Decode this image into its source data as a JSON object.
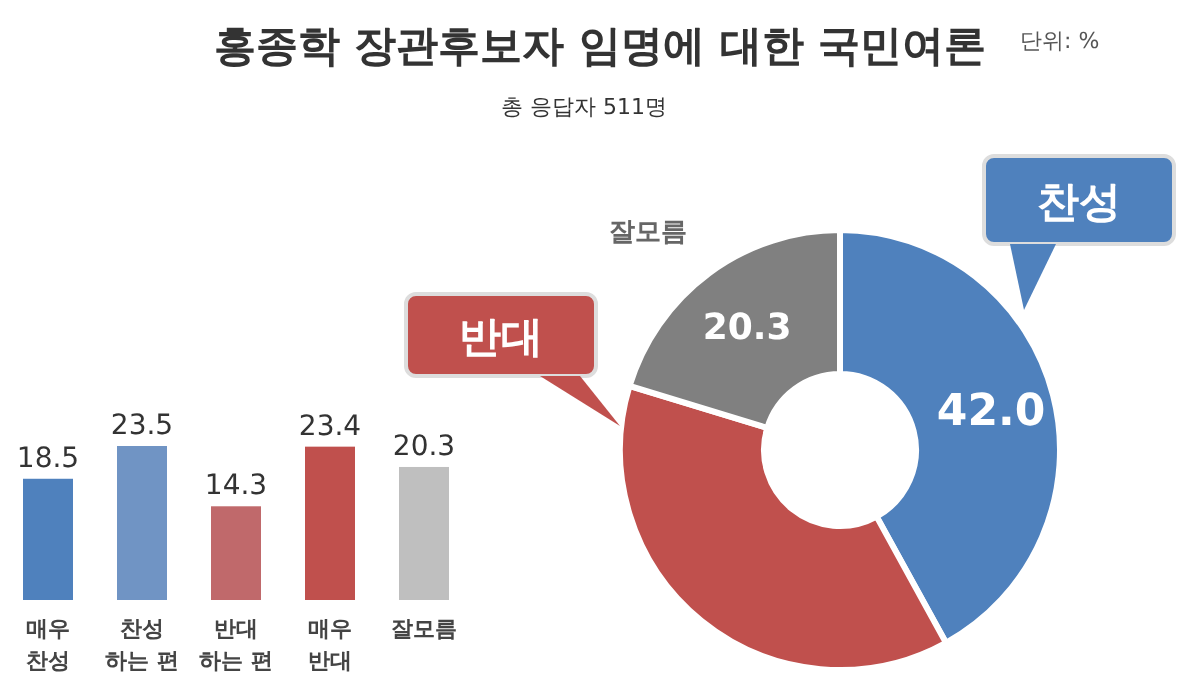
{
  "chart_data": [
    {
      "type": "bar",
      "categories": [
        "매우 찬성",
        "찬성 하는 편",
        "반대 하는 편",
        "매우 반대",
        "잘모름"
      ],
      "values": [
        18.5,
        23.5,
        14.3,
        23.4,
        20.3
      ],
      "colors": [
        "#4f81bd",
        "#7094c4",
        "#c0696b",
        "#c0504d",
        "#bfbfbf"
      ],
      "data_labels": true
    },
    {
      "type": "donut",
      "title": "홍종학 장관후보자 임명에 대한 국민여론",
      "subtitle": "총 응답자 511명",
      "annotations": [
        "단위: %"
      ],
      "categories": [
        "찬성",
        "반대",
        "잘모름"
      ],
      "values": [
        42.0,
        37.7,
        20.3
      ],
      "colors": [
        "#4f81bd",
        "#c0504d",
        "#808080"
      ],
      "value_labels": [
        "42.0",
        null,
        "20.3"
      ]
    }
  ]
}
